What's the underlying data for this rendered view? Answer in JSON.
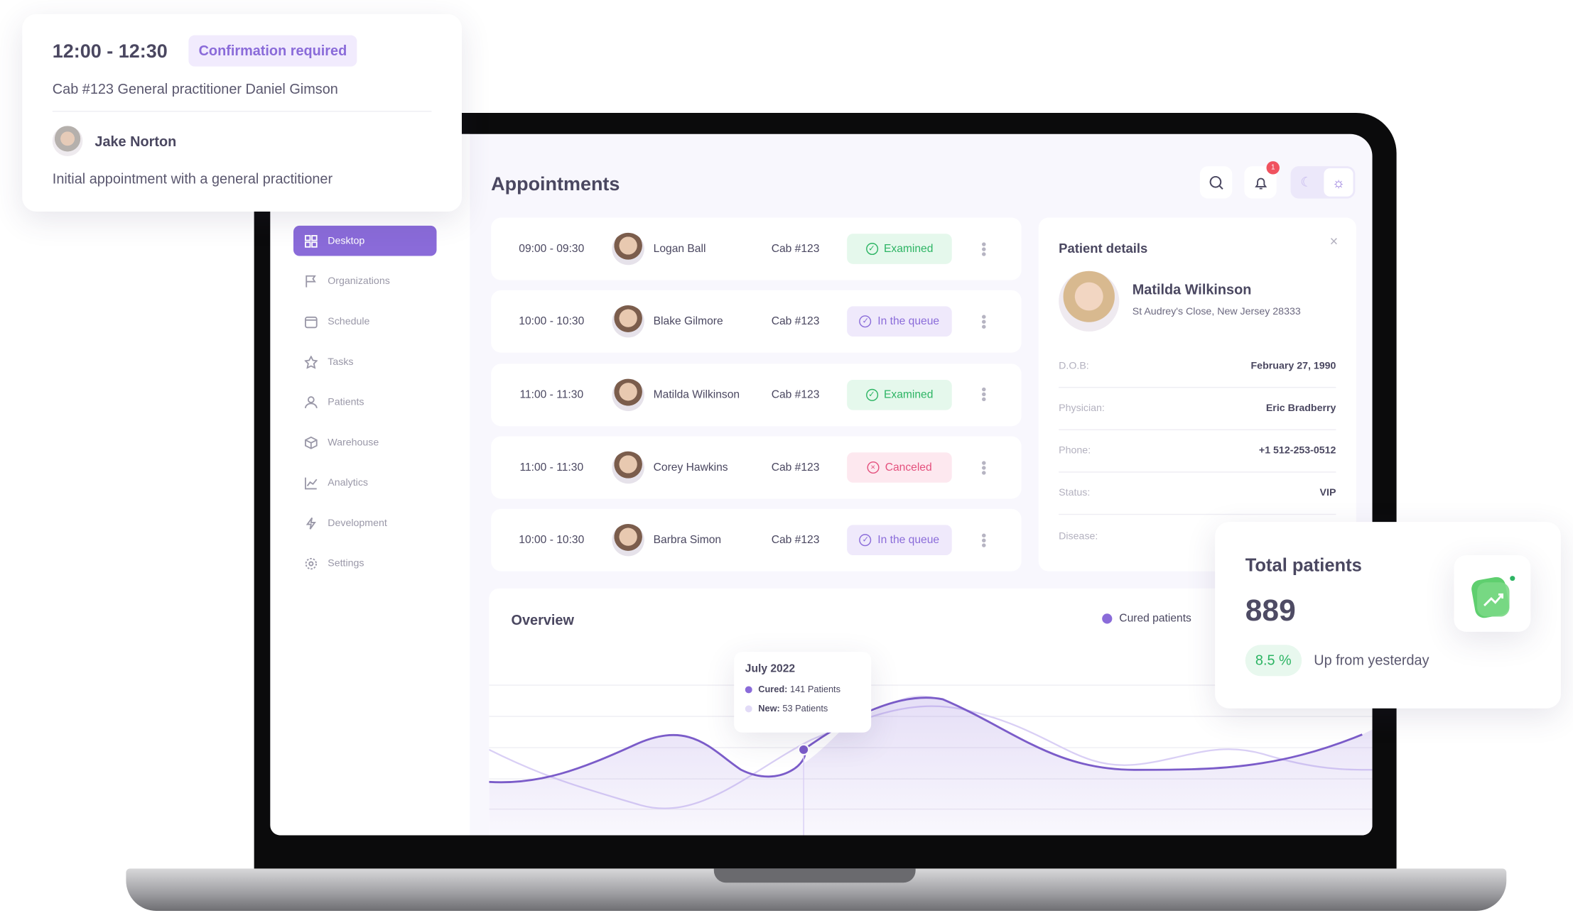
{
  "popup": {
    "time": "12:00 - 12:30",
    "status": "Confirmation required",
    "details": "Cab #123  General practitioner Daniel Gimson",
    "patient": "Jake Norton",
    "description": "Initial appointment with a general practitioner"
  },
  "header": {
    "title": "Appointments",
    "notification_count": "1"
  },
  "sidebar": {
    "items": [
      {
        "label": "Desktop",
        "icon": "grid-icon",
        "active": true
      },
      {
        "label": "Organizations",
        "icon": "flag-icon"
      },
      {
        "label": "Schedule",
        "icon": "calendar-icon"
      },
      {
        "label": "Tasks",
        "icon": "star-icon"
      },
      {
        "label": "Patients",
        "icon": "user-icon"
      },
      {
        "label": "Warehouse",
        "icon": "box-icon"
      },
      {
        "label": "Analytics",
        "icon": "chart-icon"
      },
      {
        "label": "Development",
        "icon": "bolt-icon"
      },
      {
        "label": "Settings",
        "icon": "gear-icon"
      }
    ]
  },
  "appointments": [
    {
      "time": "09:00 - 09:30",
      "name": "Logan Ball",
      "cab": "Cab #123",
      "status": "Examined"
    },
    {
      "time": "10:00 - 10:30",
      "name": "Blake Gilmore",
      "cab": "Cab #123",
      "status": "In the queue"
    },
    {
      "time": "11:00 - 11:30",
      "name": "Matilda Wilkinson",
      "cab": "Cab #123",
      "status": "Examined"
    },
    {
      "time": "11:00 - 11:30",
      "name": "Corey Hawkins",
      "cab": "Cab #123",
      "status": "Canceled"
    },
    {
      "time": "10:00 - 10:30",
      "name": "Barbra Simon",
      "cab": "Cab #123",
      "status": "In the queue"
    }
  ],
  "patient_details": {
    "title": "Patient details",
    "name": "Matilda Wilkinson",
    "address": "St Audrey's Close, New Jersey 28333",
    "fields": [
      {
        "label": "D.O.B:",
        "value": "February 27, 1990"
      },
      {
        "label": "Physician:",
        "value": "Eric Bradberry"
      },
      {
        "label": "Phone:",
        "value": "+1 512-253-0512"
      },
      {
        "label": "Status:",
        "value": "VIP"
      },
      {
        "label": "Disease:",
        "value": ""
      }
    ]
  },
  "overview": {
    "title": "Overview",
    "legend": "Cured patients",
    "tooltip": {
      "title": "July 2022",
      "cured_label": "Cured:",
      "cured_value": "141 Patients",
      "new_label": "New:",
      "new_value": "53 Patients"
    }
  },
  "total": {
    "title": "Total patients",
    "value": "889",
    "change": "8.5 %",
    "change_text": "Up from yesterday"
  },
  "colors": {
    "accent": "#8a6bd9",
    "examined": "#2cb463",
    "canceled": "#e4507d",
    "positive": "#2cb463"
  }
}
